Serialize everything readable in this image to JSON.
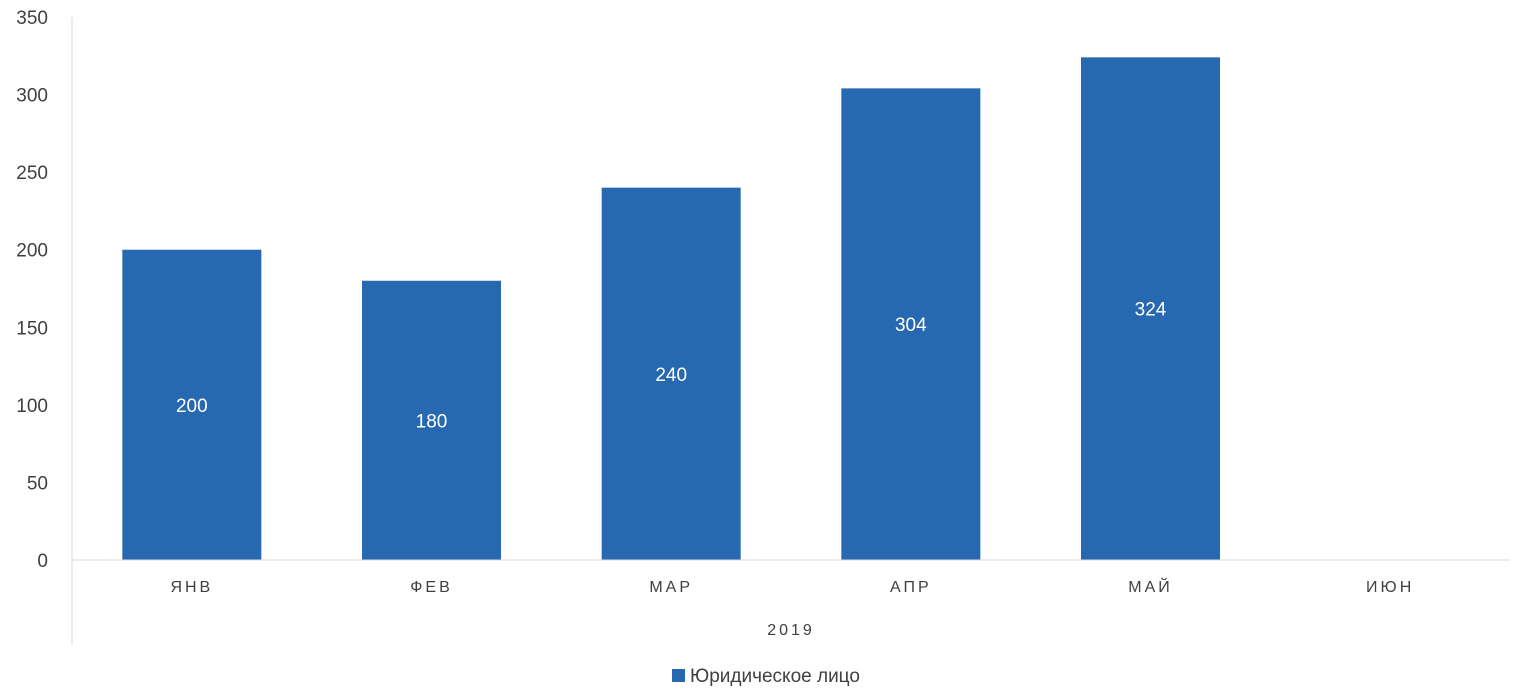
{
  "chart_data": {
    "type": "bar",
    "categories": [
      "ЯНВ",
      "ФЕВ",
      "МАР",
      "АПР",
      "МАЙ",
      "ИЮН"
    ],
    "group_label": "2019",
    "series": [
      {
        "name": "Юридическое лицо",
        "values": [
          200,
          180,
          240,
          304,
          324,
          null
        ],
        "data_labels": [
          "200",
          "180",
          "240",
          "304",
          "324",
          ""
        ],
        "color": "#2769B1"
      }
    ],
    "ylim": [
      0,
      350
    ],
    "yticks": [
      0,
      50,
      100,
      150,
      200,
      250,
      300,
      350
    ],
    "ytick_labels": [
      "0",
      "50",
      "100",
      "150",
      "200",
      "250",
      "300",
      "350"
    ],
    "grid": false,
    "legend_position": "bottom",
    "axis_color": "#D9D9D9"
  }
}
